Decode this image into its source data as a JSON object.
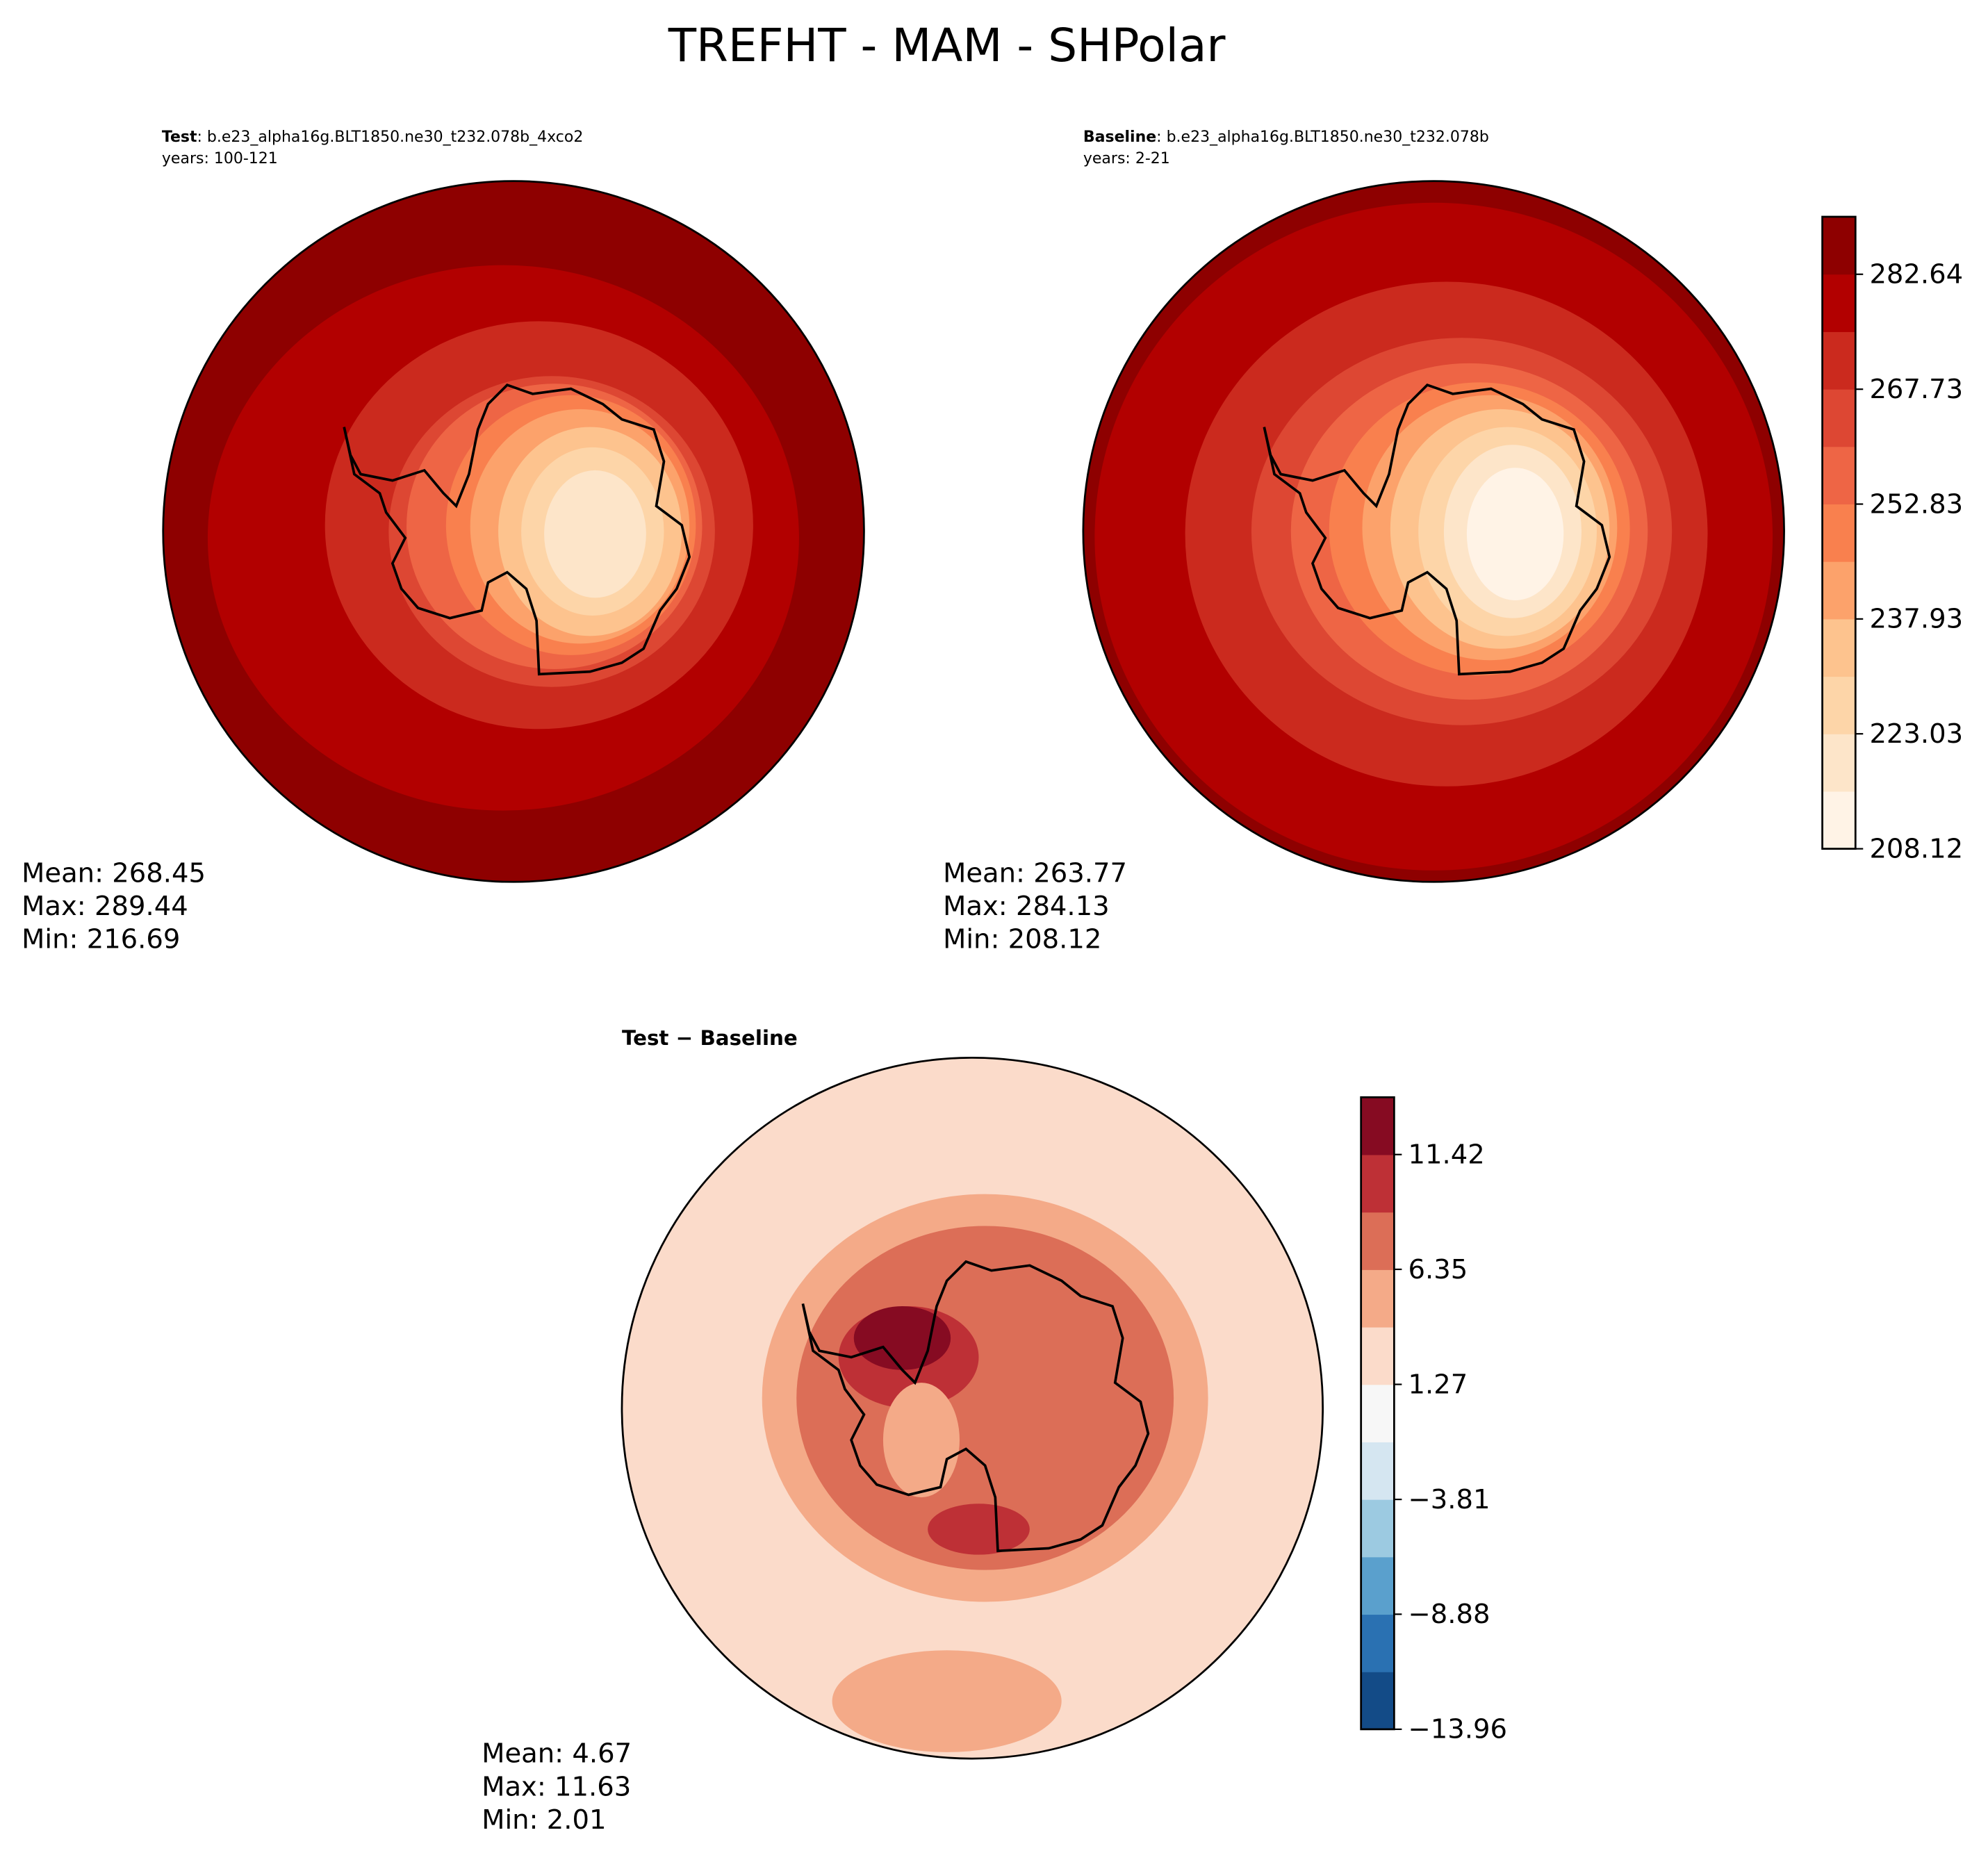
{
  "title": "TREFHT - MAM - SHPolar",
  "chart_data": [
    {
      "type": "polar-contour",
      "label": "Test",
      "case": ": b.e23_alpha16g.BLT1850.ne30_t232.078b_4xco2",
      "years": "years: 100-121",
      "stats": [
        "Mean: 268.45",
        "Max: 289.44",
        "Min: 216.69"
      ]
    },
    {
      "type": "polar-contour",
      "label": "Baseline",
      "case": ": b.e23_alpha16g.BLT1850.ne30_t232.078b",
      "years": "years: 2-21",
      "stats": [
        "Mean: 263.77",
        "Max: 284.13",
        "Min: 208.12"
      ],
      "colorbar": {
        "ylim": [
          208.12,
          290.1
        ],
        "yticks": [
          208.12,
          223.03,
          237.93,
          252.83,
          267.73,
          282.64
        ],
        "colors": [
          "#fff3e6",
          "#fde5c9",
          "#fdd5a8",
          "#fdc38e",
          "#fca26b",
          "#f9804e",
          "#ee6545",
          "#dd4733",
          "#cb2a1e",
          "#b20000",
          "#8e0000"
        ]
      }
    },
    {
      "type": "polar-contour",
      "label": "Test − Baseline",
      "stats": [
        "Mean:  4.67",
        "Max: 11.63",
        "Min:  2.01"
      ],
      "colorbar": {
        "ylim": [
          -13.96,
          13.95
        ],
        "yticks": [
          {
            "value": -13.96,
            "label": "−13.96"
          },
          {
            "value": -8.88,
            "label": "−8.88"
          },
          {
            "value": -3.81,
            "label": "−3.81"
          },
          1.27,
          6.35,
          11.42
        ],
        "colors": [
          "#134b87",
          "#2a71b2",
          "#5aa0cd",
          "#9ccae1",
          "#d5e6f1",
          "#f7f7f7",
          "#fbdbca",
          "#f4aa88",
          "#dc6e57",
          "#be3036",
          "#860b22"
        ]
      }
    }
  ]
}
